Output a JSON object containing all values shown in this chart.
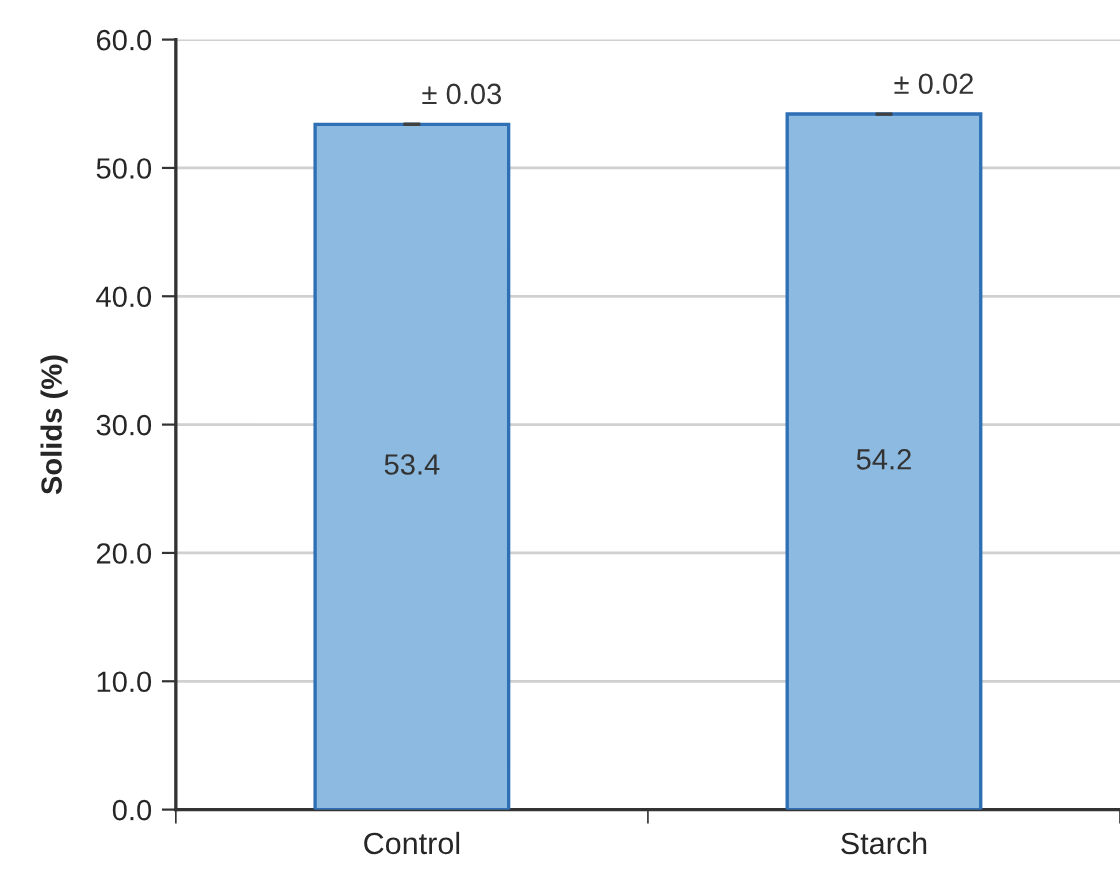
{
  "chart_data": {
    "type": "bar",
    "ylabel": "Solids (%)",
    "categories": [
      "Control",
      "Starch"
    ],
    "series": [
      {
        "color": "#8cbae0",
        "values": [
          53.4,
          54.2
        ],
        "errors": [
          0.03,
          0.02
        ]
      }
    ],
    "data_labels": true,
    "annotations": [
      {
        "text": "± 0.03",
        "x": "Control",
        "y": 53.43
      },
      {
        "text": "± 0.02",
        "x": "Starch",
        "y": 54.22
      }
    ],
    "ylim": [
      0,
      60
    ],
    "yticks": [
      {
        "value": 0,
        "label": "0.0"
      },
      {
        "value": 10,
        "label": "10.0"
      },
      {
        "value": 20,
        "label": "20.0"
      },
      {
        "value": 30,
        "label": "30.0"
      },
      {
        "value": 40,
        "label": "40.0"
      },
      {
        "value": 50,
        "label": "50.0"
      },
      {
        "value": 60,
        "label": "60.0"
      }
    ],
    "grid": "y"
  }
}
